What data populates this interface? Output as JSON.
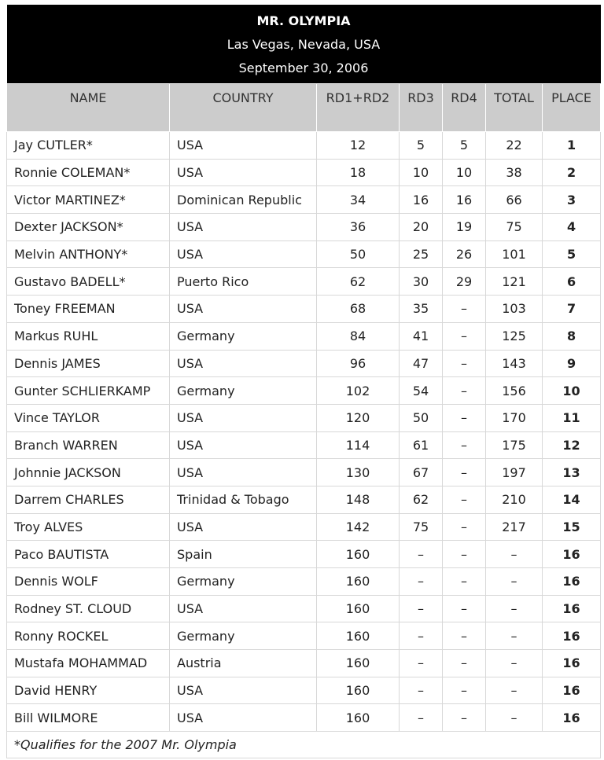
{
  "header": {
    "title": "MR. OLYMPIA",
    "location": "Las Vegas, Nevada, USA",
    "date": "September 30, 2006"
  },
  "columns": [
    "NAME",
    "COUNTRY",
    "RD1+RD2",
    "RD3",
    "RD4",
    "TOTAL",
    "PLACE"
  ],
  "rows": [
    {
      "name": "Jay CUTLER*",
      "country": "USA",
      "rd12": "12",
      "rd3": "5",
      "rd4": "5",
      "total": "22",
      "place": "1"
    },
    {
      "name": "Ronnie COLEMAN*",
      "country": "USA",
      "rd12": "18",
      "rd3": "10",
      "rd4": "10",
      "total": "38",
      "place": "2"
    },
    {
      "name": "Victor MARTINEZ*",
      "country": "Dominican Republic",
      "rd12": "34",
      "rd3": "16",
      "rd4": "16",
      "total": "66",
      "place": "3"
    },
    {
      "name": "Dexter JACKSON*",
      "country": "USA",
      "rd12": "36",
      "rd3": "20",
      "rd4": "19",
      "total": "75",
      "place": "4"
    },
    {
      "name": "Melvin ANTHONY*",
      "country": "USA",
      "rd12": "50",
      "rd3": "25",
      "rd4": "26",
      "total": "101",
      "place": "5"
    },
    {
      "name": "Gustavo BADELL*",
      "country": "Puerto Rico",
      "rd12": "62",
      "rd3": "30",
      "rd4": "29",
      "total": "121",
      "place": "6"
    },
    {
      "name": "Toney FREEMAN",
      "country": "USA",
      "rd12": "68",
      "rd3": "35",
      "rd4": "–",
      "total": "103",
      "place": "7"
    },
    {
      "name": "Markus RUHL",
      "country": "Germany",
      "rd12": "84",
      "rd3": "41",
      "rd4": "–",
      "total": "125",
      "place": "8"
    },
    {
      "name": "Dennis JAMES",
      "country": "USA",
      "rd12": "96",
      "rd3": "47",
      "rd4": "–",
      "total": "143",
      "place": "9"
    },
    {
      "name": "Gunter SCHLIERKAMP",
      "country": "Germany",
      "rd12": "102",
      "rd3": "54",
      "rd4": "–",
      "total": "156",
      "place": "10"
    },
    {
      "name": "Vince TAYLOR",
      "country": "USA",
      "rd12": "120",
      "rd3": "50",
      "rd4": "–",
      "total": "170",
      "place": "11"
    },
    {
      "name": "Branch WARREN",
      "country": "USA",
      "rd12": "114",
      "rd3": "61",
      "rd4": "–",
      "total": "175",
      "place": "12"
    },
    {
      "name": "Johnnie JACKSON",
      "country": "USA",
      "rd12": "130",
      "rd3": "67",
      "rd4": "–",
      "total": "197",
      "place": "13"
    },
    {
      "name": "Darrem CHARLES",
      "country": "Trinidad & Tobago",
      "rd12": "148",
      "rd3": "62",
      "rd4": "–",
      "total": "210",
      "place": "14"
    },
    {
      "name": "Troy ALVES",
      "country": "USA",
      "rd12": "142",
      "rd3": "75",
      "rd4": "–",
      "total": "217",
      "place": "15"
    },
    {
      "name": "Paco BAUTISTA",
      "country": "Spain",
      "rd12": "160",
      "rd3": "–",
      "rd4": "–",
      "total": "–",
      "place": "16"
    },
    {
      "name": "Dennis WOLF",
      "country": "Germany",
      "rd12": "160",
      "rd3": "–",
      "rd4": "–",
      "total": "–",
      "place": "16"
    },
    {
      "name": "Rodney ST. CLOUD",
      "country": "USA",
      "rd12": "160",
      "rd3": "–",
      "rd4": "–",
      "total": "–",
      "place": "16"
    },
    {
      "name": "Ronny ROCKEL",
      "country": "Germany",
      "rd12": "160",
      "rd3": "–",
      "rd4": "–",
      "total": "–",
      "place": "16"
    },
    {
      "name": "Mustafa MOHAMMAD",
      "country": "Austria",
      "rd12": "160",
      "rd3": "–",
      "rd4": "–",
      "total": "–",
      "place": "16"
    },
    {
      "name": "David HENRY",
      "country": "USA",
      "rd12": "160",
      "rd3": "–",
      "rd4": "–",
      "total": "–",
      "place": "16"
    },
    {
      "name": "Bill WILMORE",
      "country": "USA",
      "rd12": "160",
      "rd3": "–",
      "rd4": "–",
      "total": "–",
      "place": "16"
    }
  ],
  "footnote": "*Qualifies for the 2007 Mr. Olympia"
}
